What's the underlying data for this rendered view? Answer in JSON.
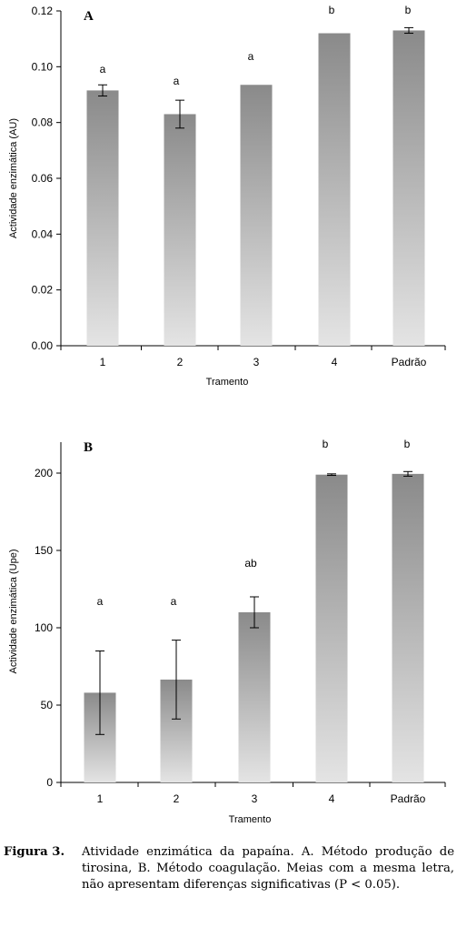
{
  "chart_data": [
    {
      "type": "bar",
      "panel_label": "A",
      "categories": [
        "1",
        "2",
        "3",
        "4",
        "Padrão"
      ],
      "values": [
        0.0915,
        0.083,
        0.0935,
        0.112,
        0.113
      ],
      "errors": [
        0.002,
        0.005,
        null,
        null,
        0.001
      ],
      "significance": [
        "a",
        "a",
        "a",
        "b",
        "b"
      ],
      "xlabel": "Tramento",
      "ylabel": "Actividade enzimática (AU)",
      "ylim": [
        0,
        0.12
      ],
      "yticks": [
        "0.00",
        "0.02",
        "0.04",
        "0.06",
        "0.08",
        "0.10",
        "0.12"
      ],
      "grid": false,
      "bar_color_top": "#8a8a8a",
      "bar_color_bottom": "#e4e4e4"
    },
    {
      "type": "bar",
      "panel_label": "B",
      "categories": [
        "1",
        "2",
        "3",
        "4",
        "Padrão"
      ],
      "values": [
        58,
        66.5,
        110,
        199,
        199.5
      ],
      "errors": [
        27,
        25.5,
        10,
        0.5,
        1.5
      ],
      "significance": [
        "a",
        "a",
        "ab",
        "b",
        "b"
      ],
      "xlabel": "Tramento",
      "ylabel": "Actividade enzimática (Upe)",
      "ylim": [
        0,
        220
      ],
      "yticks": [
        "0",
        "50",
        "100",
        "150",
        "200"
      ],
      "grid": false,
      "bar_color_top": "#8a8a8a",
      "bar_color_bottom": "#e4e4e4"
    }
  ],
  "caption": {
    "label": "Figura 3.",
    "text": "Atividade enzimática da papaína. A. Método produção de tirosina, B. Método coagulação. Meias com a mesma letra, não apresentam diferenças significativas (P < 0.05)."
  }
}
